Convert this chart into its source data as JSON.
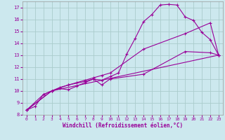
{
  "background_color": "#cce8ee",
  "grid_color": "#aacccc",
  "line_color": "#990099",
  "xlabel": "Windchill (Refroidissement éolien,°C)",
  "xlim": [
    -0.5,
    23.5
  ],
  "ylim": [
    8,
    17.5
  ],
  "xticks": [
    0,
    1,
    2,
    3,
    4,
    5,
    6,
    7,
    8,
    9,
    10,
    11,
    12,
    13,
    14,
    15,
    16,
    17,
    18,
    19,
    20,
    21,
    22,
    23
  ],
  "yticks": [
    8,
    9,
    10,
    11,
    12,
    13,
    14,
    15,
    16,
    17
  ],
  "curve1_x": [
    0,
    1,
    2,
    3,
    4,
    5,
    6,
    7,
    8,
    9,
    10,
    11,
    12,
    13,
    14,
    15,
    16,
    17,
    18,
    19,
    20,
    21,
    22,
    23
  ],
  "curve1_y": [
    8.4,
    8.7,
    9.7,
    10.0,
    10.2,
    10.1,
    10.4,
    10.7,
    11.0,
    10.9,
    11.2,
    11.5,
    13.1,
    14.4,
    15.8,
    16.4,
    17.2,
    17.25,
    17.2,
    16.2,
    15.9,
    14.9,
    14.3,
    13.0
  ],
  "curve2_x": [
    0,
    2,
    3,
    4,
    5,
    6,
    7,
    8,
    9,
    10,
    14,
    19,
    22,
    23
  ],
  "curve2_y": [
    8.4,
    9.7,
    10.0,
    10.3,
    10.5,
    10.7,
    10.9,
    11.1,
    11.3,
    11.5,
    13.5,
    14.8,
    15.7,
    13.0
  ],
  "curve3_x": [
    0,
    3,
    5,
    7,
    8,
    9,
    10,
    14,
    19,
    22,
    23
  ],
  "curve3_y": [
    8.4,
    10.0,
    10.5,
    10.8,
    11.0,
    10.5,
    11.0,
    11.4,
    13.3,
    13.2,
    13.0
  ],
  "curve4_x": [
    0,
    3,
    23
  ],
  "curve4_y": [
    8.4,
    10.0,
    13.0
  ],
  "font_family": "monospace"
}
